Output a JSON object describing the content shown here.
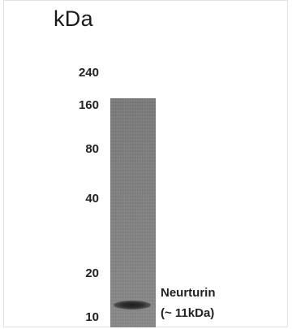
{
  "unit_label": "kDa",
  "markers": [
    {
      "label": "240"
    },
    {
      "label": "160"
    },
    {
      "label": "80"
    },
    {
      "label": "40"
    },
    {
      "label": "20"
    },
    {
      "label": "10"
    }
  ],
  "band": {
    "name": "Neurturin",
    "size_note": "(~ 11kDa)"
  }
}
